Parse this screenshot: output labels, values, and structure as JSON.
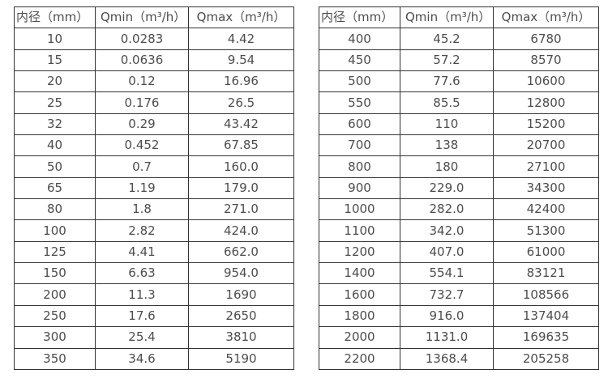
{
  "colors": {
    "background": "#ffffff",
    "border": "#333333",
    "text": "#4d4d4d"
  },
  "tables": [
    {
      "name": "flow-rate-table-small-diameters",
      "headers": [
        "内径（mm）",
        "Qmin（m³/h）",
        "Qmax（m³/h）"
      ],
      "rows": [
        [
          "10",
          "0.0283",
          "4.42"
        ],
        [
          "15",
          "0.0636",
          "9.54"
        ],
        [
          "20",
          "0.12",
          "16.96"
        ],
        [
          "25",
          "0.176",
          "26.5"
        ],
        [
          "32",
          "0.29",
          "43.42"
        ],
        [
          "40",
          "0.452",
          "67.85"
        ],
        [
          "50",
          "0.7",
          "160.0"
        ],
        [
          "65",
          "1.19",
          "179.0"
        ],
        [
          "80",
          "1.8",
          "271.0"
        ],
        [
          "100",
          "2.82",
          "424.0"
        ],
        [
          "125",
          "4.41",
          "662.0"
        ],
        [
          "150",
          "6.63",
          "954.0"
        ],
        [
          "200",
          "11.3",
          "1690"
        ],
        [
          "250",
          "17.6",
          "2650"
        ],
        [
          "300",
          "25.4",
          "3810"
        ],
        [
          "350",
          "34.6",
          "5190"
        ]
      ]
    },
    {
      "name": "flow-rate-table-large-diameters",
      "headers": [
        "内径（mm）",
        "Qmin（m³/h）",
        "Qmax（m³/h）"
      ],
      "rows": [
        [
          "400",
          "45.2",
          "6780"
        ],
        [
          "450",
          "57.2",
          "8570"
        ],
        [
          "500",
          "77.6",
          "10600"
        ],
        [
          "550",
          "85.5",
          "12800"
        ],
        [
          "600",
          "110",
          "15200"
        ],
        [
          "700",
          "138",
          "20700"
        ],
        [
          "800",
          "180",
          "27100"
        ],
        [
          "900",
          "229.0",
          "34300"
        ],
        [
          "1000",
          "282.0",
          "42400"
        ],
        [
          "1100",
          "342.0",
          "51300"
        ],
        [
          "1200",
          "407.0",
          "61000"
        ],
        [
          "1400",
          "554.1",
          "83121"
        ],
        [
          "1600",
          "732.7",
          "108566"
        ],
        [
          "1800",
          "916.0",
          "137404"
        ],
        [
          "2000",
          "1131.0",
          "169635"
        ],
        [
          "2200",
          "1368.4",
          "205258"
        ]
      ]
    }
  ]
}
